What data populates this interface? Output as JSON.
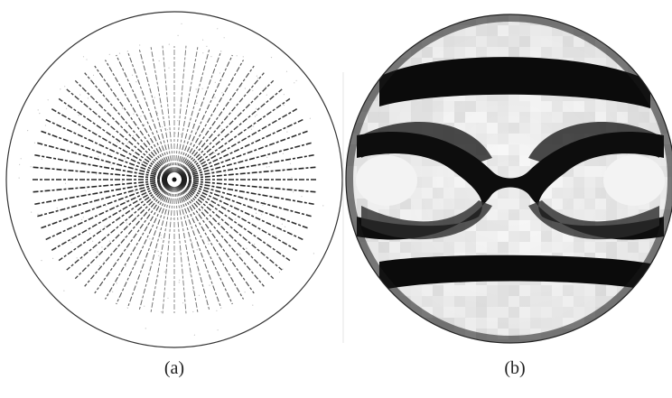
{
  "figure": {
    "panels": [
      {
        "id": "a",
        "label": "(a)",
        "description_kind": "radial-vector-field"
      },
      {
        "id": "b",
        "label": "(b)",
        "description_kind": "grayscale-intensity-disk"
      }
    ]
  }
}
